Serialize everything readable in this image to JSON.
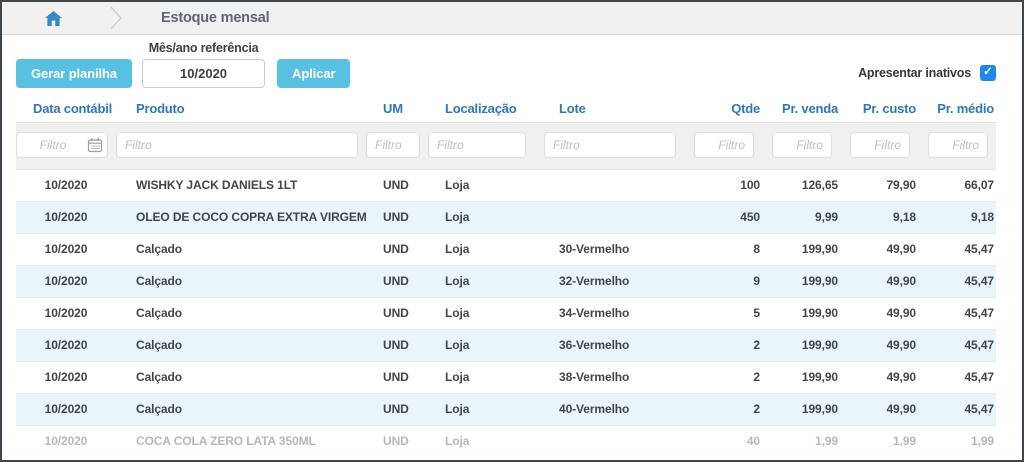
{
  "colors": {
    "accent": "#58c1e2",
    "header_blue": "#3077b8",
    "checkbox_blue": "#1f87e8",
    "zebra": "#e9f4fb",
    "bar_bg": "#f1f1f1",
    "filter_bg": "#f0f0f0",
    "frame_border": "#3f464c",
    "crumb_color": "#5b6770",
    "row_text": "#40464b",
    "inactive_text": "#b5b8bb"
  },
  "icons": {
    "home": "home-icon",
    "breadcrumb_separator": "chevron-right-icon",
    "calendar": "calendar-icon",
    "checkmark": "✓"
  },
  "breadcrumb": {
    "title": "Estoque mensal"
  },
  "toolbar": {
    "generate_button": "Gerar planilha",
    "month_label": "Mês/ano referência",
    "month_value": "10/2020",
    "apply_button": "Aplicar",
    "show_inactive_label": "Apresentar inativos",
    "show_inactive_checked": true
  },
  "table": {
    "columns": [
      "Data contábil",
      "Produto",
      "UM",
      "Localização",
      "Lote",
      "Qtde",
      "Pr. venda",
      "Pr. custo",
      "Pr. médio"
    ],
    "filter_placeholder": "Filtro",
    "rows": [
      {
        "date": "10/2020",
        "product": "WISHKY JACK DANIELS 1LT",
        "um": "UND",
        "location": "Loja",
        "lot": "",
        "qty": "100",
        "sale": "126,65",
        "cost": "79,90",
        "avg": "66,07",
        "inactive": false
      },
      {
        "date": "10/2020",
        "product": "OLEO DE COCO COPRA EXTRA VIRGEM",
        "um": "UND",
        "location": "Loja",
        "lot": "",
        "qty": "450",
        "sale": "9,99",
        "cost": "9,18",
        "avg": "9,18",
        "inactive": false
      },
      {
        "date": "10/2020",
        "product": "Calçado",
        "um": "UND",
        "location": "Loja",
        "lot": "30-Vermelho",
        "qty": "8",
        "sale": "199,90",
        "cost": "49,90",
        "avg": "45,47",
        "inactive": false
      },
      {
        "date": "10/2020",
        "product": "Calçado",
        "um": "UND",
        "location": "Loja",
        "lot": "32-Vermelho",
        "qty": "9",
        "sale": "199,90",
        "cost": "49,90",
        "avg": "45,47",
        "inactive": false
      },
      {
        "date": "10/2020",
        "product": "Calçado",
        "um": "UND",
        "location": "Loja",
        "lot": "34-Vermelho",
        "qty": "5",
        "sale": "199,90",
        "cost": "49,90",
        "avg": "45,47",
        "inactive": false
      },
      {
        "date": "10/2020",
        "product": "Calçado",
        "um": "UND",
        "location": "Loja",
        "lot": "36-Vermelho",
        "qty": "2",
        "sale": "199,90",
        "cost": "49,90",
        "avg": "45,47",
        "inactive": false
      },
      {
        "date": "10/2020",
        "product": "Calçado",
        "um": "UND",
        "location": "Loja",
        "lot": "38-Vermelho",
        "qty": "2",
        "sale": "199,90",
        "cost": "49,90",
        "avg": "45,47",
        "inactive": false
      },
      {
        "date": "10/2020",
        "product": "Calçado",
        "um": "UND",
        "location": "Loja",
        "lot": "40-Vermelho",
        "qty": "2",
        "sale": "199,90",
        "cost": "49,90",
        "avg": "45,47",
        "inactive": false
      },
      {
        "date": "10/2020",
        "product": "COCA COLA ZERO LATA 350ML",
        "um": "UND",
        "location": "Loja",
        "lot": "",
        "qty": "40",
        "sale": "1,99",
        "cost": "1,99",
        "avg": "1,99",
        "inactive": true
      }
    ]
  }
}
